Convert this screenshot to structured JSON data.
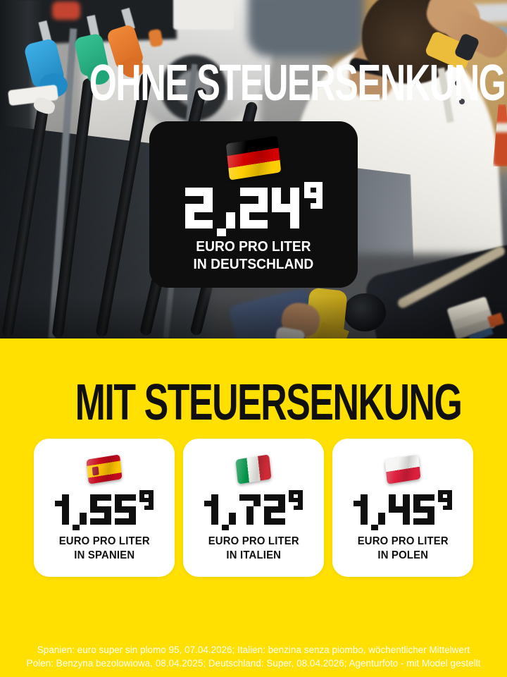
{
  "colors": {
    "yellow_bg": "#FFE000",
    "card_dark_bg": "#0E0E0E",
    "text_dark": "#111111",
    "text_light": "#FFFFFF"
  },
  "top_section": {
    "headline": "OHNE STEUERSENKUNG",
    "price_card": {
      "flag_icon": "germany-flag",
      "price": "2,24",
      "price_superscript": "9",
      "unit_line1": "EURO PRO LITER",
      "unit_line2": "IN DEUTSCHLAND"
    }
  },
  "bottom_section": {
    "headline": "MIT STEUERSENKUNG",
    "price_cards": [
      {
        "flag_icon": "spain-flag",
        "price": "1,55",
        "price_superscript": "9",
        "unit_line1": "EURO PRO LITER",
        "unit_line2": "IN SPANIEN"
      },
      {
        "flag_icon": "italy-flag",
        "price": "1,72",
        "price_superscript": "9",
        "unit_line1": "EURO PRO LITER",
        "unit_line2": "IN ITALIEN"
      },
      {
        "flag_icon": "poland-flag",
        "price": "1,45",
        "price_superscript": "9",
        "unit_line1": "EURO PRO LITER",
        "unit_line2": "IN POLEN"
      }
    ],
    "footnote_line1": "Spanien: euro super sin plomo 95, 07.04.2026; Italien: benzina senza piombo, wöchentlicher Mittelwert",
    "footnote_line2": "Polen: Benzyna bezolowiowa, 08.04.2025; Deutschland: Super, 08.04.2026; Agenturfoto - mit Model gestellt"
  }
}
